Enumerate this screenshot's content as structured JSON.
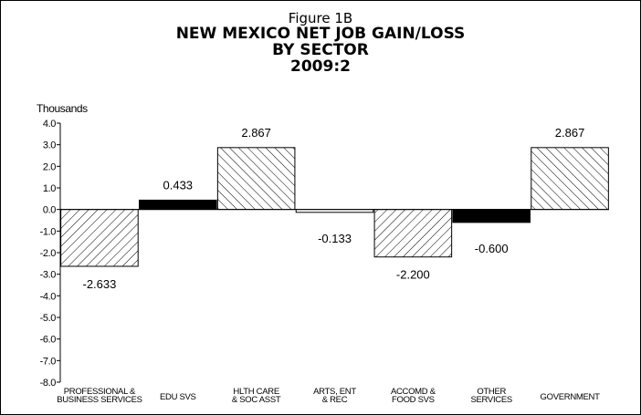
{
  "chart_data": {
    "type": "bar",
    "figure_label": "Figure 1B",
    "title": [
      "NEW MEXICO NET JOB GAIN/LOSS",
      "BY SECTOR",
      "2009:2"
    ],
    "ylabel": "Thousands",
    "xlabel": "",
    "ylim": [
      -8,
      4
    ],
    "yticks": [
      "4.0",
      "3.0",
      "2.0",
      "1.0",
      "0.0",
      "-1.0",
      "-2.0",
      "-3.0",
      "-4.0",
      "-5.0",
      "-6.0",
      "-7.0",
      "-8.0"
    ],
    "categories": [
      [
        "PROFESSIONAL &",
        "BUSINESS SERVICES"
      ],
      [
        "EDU SVS"
      ],
      [
        "HLTH CARE",
        "& SOC ASST"
      ],
      [
        "ARTS, ENT",
        "& REC"
      ],
      [
        "ACCOMD &",
        "FOOD SVS"
      ],
      [
        "OTHER",
        "SERVICES"
      ],
      [
        "GOVERNMENT"
      ]
    ],
    "values": [
      -2.633,
      0.433,
      2.867,
      -0.133,
      -2.2,
      -0.6,
      2.867
    ],
    "value_labels": [
      "-2.633",
      "0.433",
      "2.867",
      "-0.133",
      "-2.200",
      "-0.600",
      "2.867"
    ],
    "fills": [
      "hatch-left",
      "solid",
      "hatch-right",
      "none",
      "hatch-left",
      "solid",
      "hatch-right"
    ],
    "grid": false,
    "legend": "none",
    "colors": {
      "bar_solid": "#000000",
      "hatch_stroke": "#000000",
      "background": "#ffffff"
    }
  }
}
